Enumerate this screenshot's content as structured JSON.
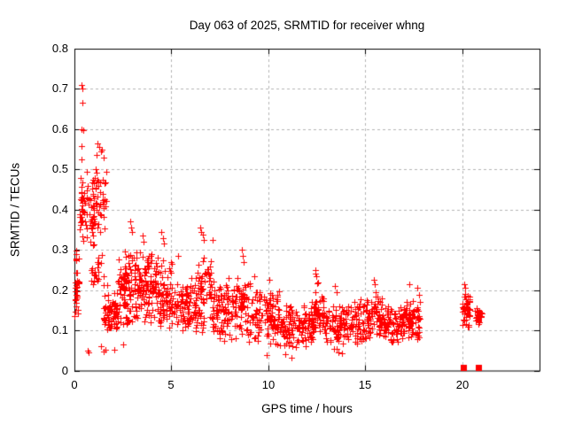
{
  "title": "Day 063 of 2025, SRMTID for receiver whng",
  "chart_data": {
    "type": "scatter",
    "title": "Day 063 of 2025, SRMTID for receiver whng",
    "xlabel": "GPS time / hours",
    "ylabel": "SRMTID / TECUs",
    "xlim": [
      0,
      24
    ],
    "ylim": [
      0,
      0.8
    ],
    "xticks": [
      "0",
      "5",
      "10",
      "15",
      "20"
    ],
    "yticks": [
      "0",
      "0.1",
      "0.2",
      "0.3",
      "0.4",
      "0.5",
      "0.6",
      "0.7",
      "0.8"
    ],
    "grid": true,
    "legend": "none",
    "marker": "plus",
    "marker_color": "#ff0000",
    "grid_color": "#b4b4b4",
    "axis_color": "#000000",
    "background": "#ffffff",
    "clusters": [
      {
        "t0": 0.0,
        "t1": 0.25,
        "n": 34,
        "y0": 0.1,
        "y1": 0.31
      },
      {
        "t0": 0.25,
        "t1": 0.5,
        "n": 16,
        "y0": 0.27,
        "y1": 0.46
      },
      {
        "t0": 0.3,
        "t1": 0.75,
        "n": 28,
        "y0": 0.3,
        "y1": 0.52
      },
      {
        "t0": 0.75,
        "t1": 1.05,
        "n": 22,
        "y0": 0.28,
        "y1": 0.46
      },
      {
        "t0": 0.9,
        "t1": 1.65,
        "n": 52,
        "y0": 0.32,
        "y1": 0.52
      },
      {
        "t0": 0.85,
        "t1": 1.7,
        "n": 24,
        "y0": 0.18,
        "y1": 0.32
      },
      {
        "t0": 1.5,
        "t1": 2.25,
        "n": 70,
        "y0": 0.09,
        "y1": 0.2
      },
      {
        "t0": 2.2,
        "t1": 3.2,
        "n": 110,
        "y0": 0.1,
        "y1": 0.32
      },
      {
        "t0": 3.2,
        "t1": 4.3,
        "n": 115,
        "y0": 0.1,
        "y1": 0.3
      },
      {
        "t0": 4.3,
        "t1": 5.1,
        "n": 75,
        "y0": 0.09,
        "y1": 0.28
      },
      {
        "t0": 5.1,
        "t1": 6.3,
        "n": 95,
        "y0": 0.08,
        "y1": 0.24
      },
      {
        "t0": 6.3,
        "t1": 7.1,
        "n": 68,
        "y0": 0.09,
        "y1": 0.3
      },
      {
        "t0": 7.1,
        "t1": 8.3,
        "n": 95,
        "y0": 0.07,
        "y1": 0.24
      },
      {
        "t0": 8.3,
        "t1": 9.1,
        "n": 62,
        "y0": 0.06,
        "y1": 0.25
      },
      {
        "t0": 9.1,
        "t1": 10.6,
        "n": 115,
        "y0": 0.05,
        "y1": 0.21
      },
      {
        "t0": 10.6,
        "t1": 11.6,
        "n": 72,
        "y0": 0.04,
        "y1": 0.17
      },
      {
        "t0": 11.6,
        "t1": 12.4,
        "n": 60,
        "y0": 0.05,
        "y1": 0.18
      },
      {
        "t0": 12.4,
        "t1": 12.9,
        "n": 42,
        "y0": 0.08,
        "y1": 0.22
      },
      {
        "t0": 12.9,
        "t1": 14.3,
        "n": 100,
        "y0": 0.05,
        "y1": 0.17
      },
      {
        "t0": 14.3,
        "t1": 15.3,
        "n": 75,
        "y0": 0.06,
        "y1": 0.18
      },
      {
        "t0": 15.3,
        "t1": 15.9,
        "n": 48,
        "y0": 0.08,
        "y1": 0.2
      },
      {
        "t0": 15.9,
        "t1": 16.9,
        "n": 75,
        "y0": 0.06,
        "y1": 0.17
      },
      {
        "t0": 16.9,
        "t1": 17.85,
        "n": 85,
        "y0": 0.07,
        "y1": 0.19
      },
      {
        "t0": 19.98,
        "t1": 20.42,
        "n": 46,
        "y0": 0.1,
        "y1": 0.2
      },
      {
        "t0": 20.65,
        "t1": 21.02,
        "n": 26,
        "y0": 0.115,
        "y1": 0.165
      }
    ],
    "points": [
      [
        0.38,
        0.71
      ],
      [
        0.42,
        0.7
      ],
      [
        0.4,
        0.665
      ],
      [
        0.38,
        0.6
      ],
      [
        0.44,
        0.598
      ],
      [
        0.36,
        0.558
      ],
      [
        0.37,
        0.525
      ],
      [
        1.2,
        0.565
      ],
      [
        1.28,
        0.555
      ],
      [
        1.35,
        0.545
      ],
      [
        1.42,
        0.55
      ],
      [
        1.15,
        0.535
      ],
      [
        1.5,
        0.53
      ],
      [
        2.88,
        0.37
      ],
      [
        2.93,
        0.355
      ],
      [
        2.98,
        0.345
      ],
      [
        3.5,
        0.335
      ],
      [
        3.55,
        0.32
      ],
      [
        4.5,
        0.345
      ],
      [
        4.55,
        0.33
      ],
      [
        4.62,
        0.315
      ],
      [
        5.35,
        0.285
      ],
      [
        6.5,
        0.355
      ],
      [
        6.55,
        0.345
      ],
      [
        6.62,
        0.338
      ],
      [
        6.68,
        0.325
      ],
      [
        7.12,
        0.325
      ],
      [
        8.65,
        0.3
      ],
      [
        8.7,
        0.285
      ],
      [
        8.75,
        0.27
      ],
      [
        9.3,
        0.235
      ],
      [
        10.05,
        0.225
      ],
      [
        12.45,
        0.25
      ],
      [
        12.42,
        0.24
      ],
      [
        12.5,
        0.235
      ],
      [
        12.55,
        0.22
      ],
      [
        13.45,
        0.21
      ],
      [
        13.55,
        0.195
      ],
      [
        15.45,
        0.225
      ],
      [
        15.5,
        0.215
      ],
      [
        17.3,
        0.215
      ],
      [
        17.7,
        0.205
      ],
      [
        20.1,
        0.215
      ],
      [
        20.16,
        0.205
      ],
      [
        0.68,
        0.05
      ],
      [
        0.75,
        0.045
      ],
      [
        1.35,
        0.06
      ],
      [
        1.5,
        0.048
      ],
      [
        1.62,
        0.052
      ],
      [
        2.05,
        0.052
      ],
      [
        2.5,
        0.065
      ],
      [
        9.9,
        0.038
      ],
      [
        10.9,
        0.04
      ],
      [
        11.2,
        0.032
      ],
      [
        13.6,
        0.045
      ],
      [
        13.8,
        0.042
      ]
    ],
    "zero_clusters": [
      {
        "x": 20.07,
        "y": 0
      },
      {
        "x": 20.85,
        "y": 0
      }
    ]
  }
}
